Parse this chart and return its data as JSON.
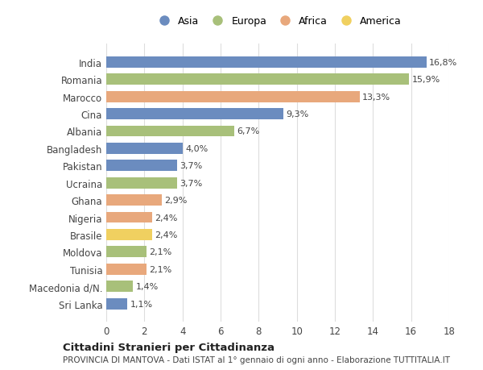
{
  "countries": [
    "India",
    "Romania",
    "Marocco",
    "Cina",
    "Albania",
    "Bangladesh",
    "Pakistan",
    "Ucraina",
    "Ghana",
    "Nigeria",
    "Brasile",
    "Moldova",
    "Tunisia",
    "Macedonia d/N.",
    "Sri Lanka"
  ],
  "values": [
    16.8,
    15.9,
    13.3,
    9.3,
    6.7,
    4.0,
    3.7,
    3.7,
    2.9,
    2.4,
    2.4,
    2.1,
    2.1,
    1.4,
    1.1
  ],
  "labels": [
    "16,8%",
    "15,9%",
    "13,3%",
    "9,3%",
    "6,7%",
    "4,0%",
    "3,7%",
    "3,7%",
    "2,9%",
    "2,4%",
    "2,4%",
    "2,1%",
    "2,1%",
    "1,4%",
    "1,1%"
  ],
  "continents": [
    "Asia",
    "Europa",
    "Africa",
    "Asia",
    "Europa",
    "Asia",
    "Asia",
    "Europa",
    "Africa",
    "Africa",
    "America",
    "Europa",
    "Africa",
    "Europa",
    "Asia"
  ],
  "colors": {
    "Asia": "#6b8cbf",
    "Europa": "#a8c07a",
    "Africa": "#e8a87c",
    "America": "#f0d060"
  },
  "legend_order": [
    "Asia",
    "Europa",
    "Africa",
    "America"
  ],
  "title": "Cittadini Stranieri per Cittadinanza",
  "subtitle": "PROVINCIA DI MANTOVA - Dati ISTAT al 1° gennaio di ogni anno - Elaborazione TUTTITALIA.IT",
  "xlim": [
    0,
    18
  ],
  "xticks": [
    0,
    2,
    4,
    6,
    8,
    10,
    12,
    14,
    16,
    18
  ],
  "background_color": "#ffffff",
  "grid_color": "#dddddd",
  "bar_height": 0.65
}
